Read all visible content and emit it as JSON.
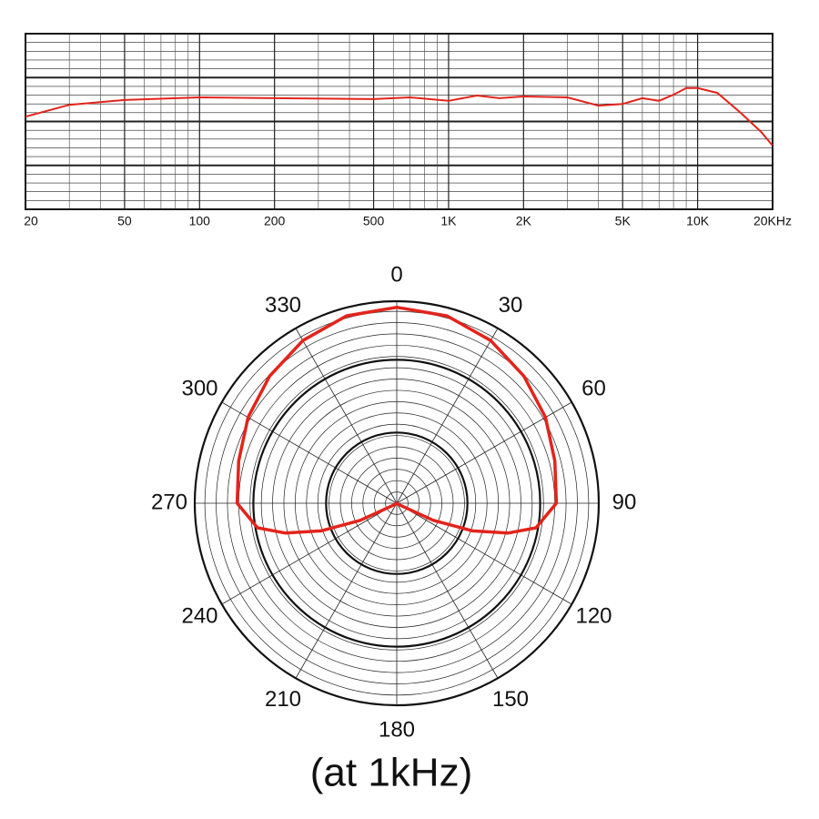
{
  "chart_data": [
    {
      "type": "line",
      "xscale": "log",
      "color": "#e3241b",
      "x": [
        20,
        30,
        50,
        100,
        200,
        500,
        700,
        1000,
        1300,
        1600,
        2000,
        3000,
        4000,
        5000,
        6000,
        7000,
        8000,
        9000,
        10000,
        12000,
        15000,
        18000,
        20000
      ],
      "values": [
        1.1,
        3.8,
        4.9,
        5.5,
        5.3,
        5.1,
        5.5,
        4.7,
        5.9,
        5.3,
        5.7,
        5.5,
        3.6,
        4.0,
        5.3,
        4.7,
        6.1,
        7.6,
        7.6,
        6.5,
        1.8,
        -2.4,
        -5.5
      ],
      "xlim": [
        20,
        20000
      ],
      "xticks": [
        20,
        50,
        100,
        200,
        500,
        {
          "value": 1000,
          "label": "1K"
        },
        {
          "value": 2000,
          "label": "2K"
        },
        {
          "value": 5000,
          "label": "5K"
        },
        {
          "value": 10000,
          "label": "10K"
        },
        {
          "value": 20000,
          "label": "20KHz"
        }
      ],
      "ylim": [
        -20,
        20
      ],
      "grid": true
    },
    {
      "type": "polar",
      "color": "#e3241b",
      "annotation": "(at 1kHz)",
      "x": [
        0,
        15,
        30,
        45,
        60,
        75,
        90,
        100,
        105,
        110,
        115,
        120,
        180,
        240,
        245,
        250,
        255,
        260,
        270,
        285,
        300,
        315,
        330,
        345
      ],
      "values": [
        0.97,
        0.96,
        0.93,
        0.89,
        0.85,
        0.81,
        0.79,
        0.7,
        0.57,
        0.4,
        0.2,
        0.02,
        0,
        0.02,
        0.2,
        0.4,
        0.57,
        0.7,
        0.79,
        0.81,
        0.85,
        0.89,
        0.93,
        0.96
      ],
      "xticks": [
        0,
        30,
        60,
        90,
        120,
        150,
        180,
        210,
        240,
        270,
        300,
        330
      ],
      "rlim": [
        0,
        1
      ],
      "grid": true
    }
  ]
}
